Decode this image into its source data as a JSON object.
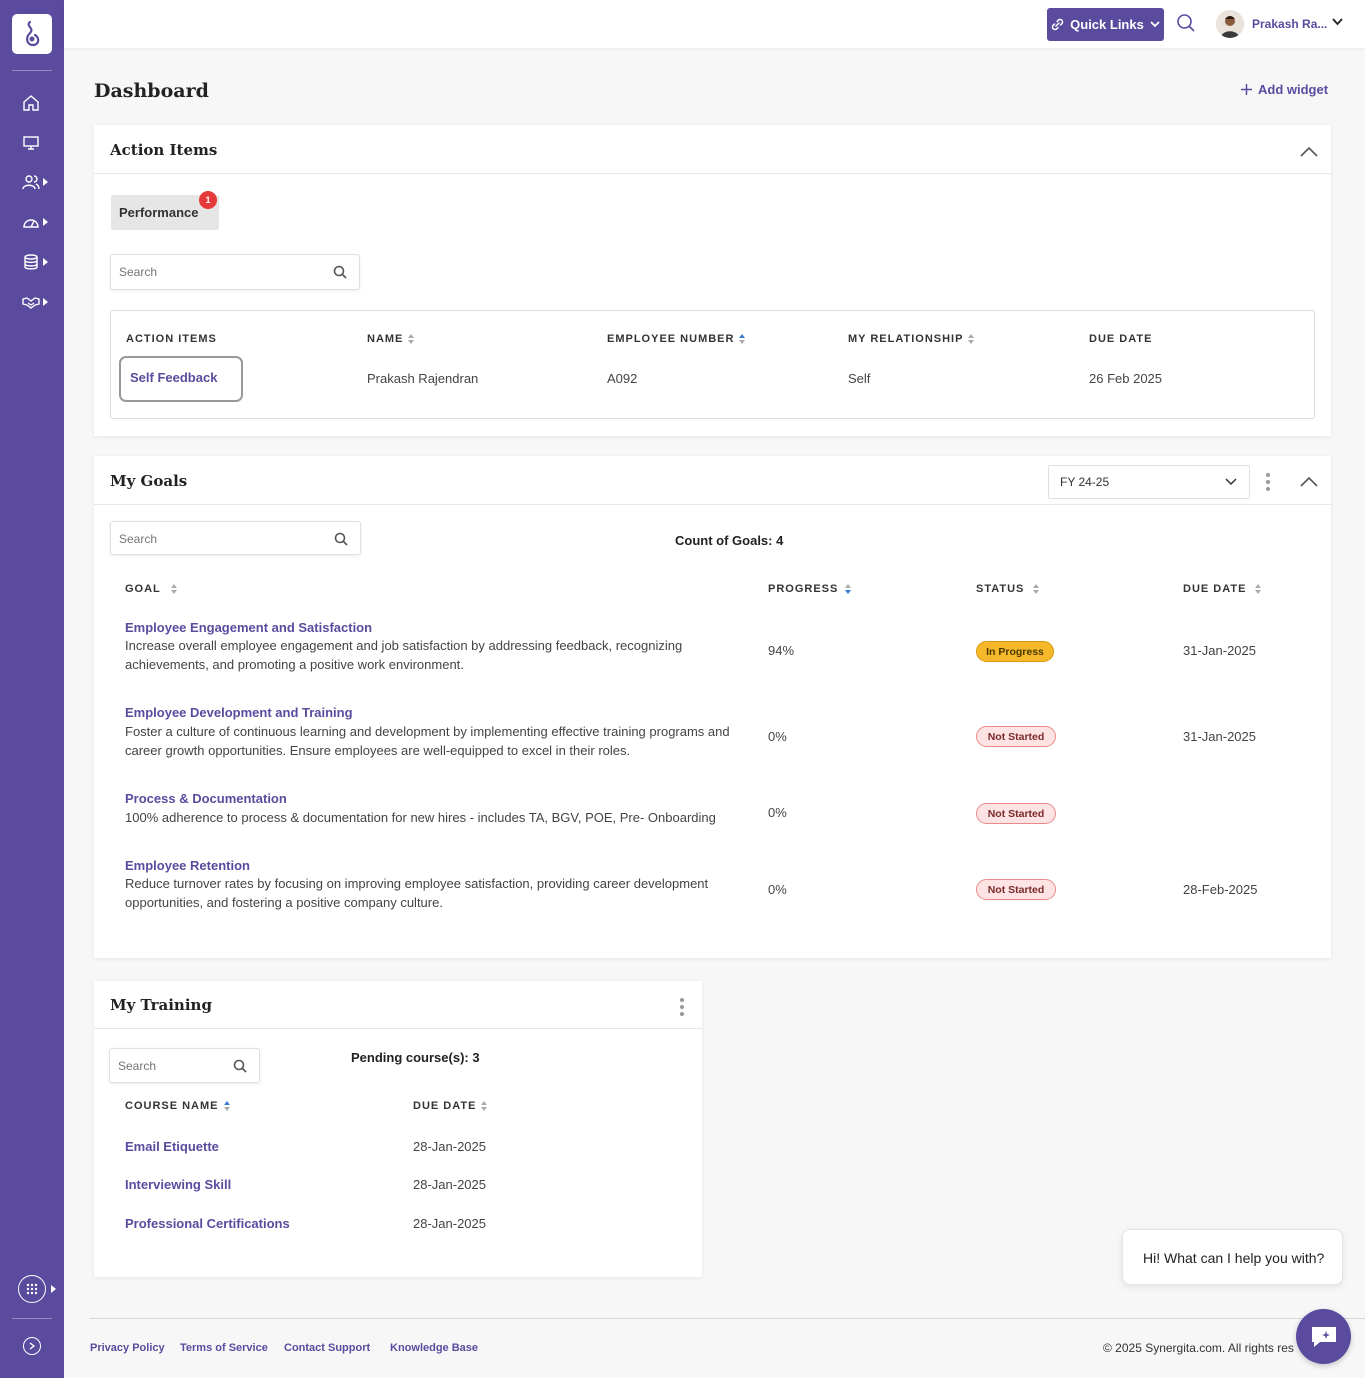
{
  "header": {
    "quick_links_label": "Quick Links",
    "user_name": "Prakash Ra..."
  },
  "page": {
    "title": "Dashboard",
    "add_widget_label": "Add widget"
  },
  "action_items": {
    "title": "Action Items",
    "tab_label": "Performance",
    "tab_badge": "1",
    "search_placeholder": "Search",
    "columns": [
      "ACTION ITEMS",
      "NAME",
      "EMPLOYEE NUMBER",
      "MY RELATIONSHIP",
      "DUE DATE"
    ],
    "rows": [
      {
        "action": "Self Feedback",
        "name": "Prakash Rajendran",
        "employee_number": "A092",
        "relationship": "Self",
        "due_date": "26 Feb 2025"
      }
    ]
  },
  "my_goals": {
    "title": "My Goals",
    "fy_selected": "FY 24-25",
    "search_placeholder": "Search",
    "count_label": "Count of Goals: 4",
    "columns": [
      "GOAL",
      "PROGRESS",
      "STATUS",
      "DUE DATE"
    ],
    "rows": [
      {
        "title": "Employee Engagement and Satisfaction",
        "desc": "Increase overall employee engagement and job satisfaction by addressing feedback, recognizing achievements, and promoting a positive work environment.",
        "progress": "94%",
        "status": "In Progress",
        "due_date": "31-Jan-2025"
      },
      {
        "title": "Employee Development and Training",
        "desc": "Foster a culture of continuous learning and development by implementing effective training programs and career growth opportunities. Ensure employees are well-equipped to excel in their roles.",
        "progress": "0%",
        "status": "Not Started",
        "due_date": "31-Jan-2025"
      },
      {
        "title": "Process & Documentation",
        "desc": "100% adherence to process & documentation for new hires - includes TA, BGV, POE, Pre- Onboarding",
        "progress": "0%",
        "status": "Not Started",
        "due_date": ""
      },
      {
        "title": "Employee Retention",
        "desc": "Reduce turnover rates by focusing on improving employee satisfaction, providing career development opportunities, and fostering a positive company culture.",
        "progress": "0%",
        "status": "Not Started",
        "due_date": "28-Feb-2025"
      }
    ]
  },
  "my_training": {
    "title": "My Training",
    "search_placeholder": "Search",
    "pending_label": "Pending course(s): 3",
    "columns": [
      "COURSE NAME",
      "DUE DATE"
    ],
    "rows": [
      {
        "course": "Email Etiquette",
        "due_date": "28-Jan-2025"
      },
      {
        "course": "Interviewing Skill",
        "due_date": "28-Jan-2025"
      },
      {
        "course": "Professional Certifications",
        "due_date": "28-Jan-2025"
      }
    ]
  },
  "footer": {
    "links": [
      "Privacy Policy",
      "Terms of Service",
      "Contact Support",
      "Knowledge Base"
    ],
    "copyright": "© 2025 Synergita.com. All rights res"
  },
  "chat": {
    "greeting": "Hi! What can I help you with?"
  },
  "colors": {
    "brand": "#5b4b9e",
    "in_progress": "#f5b82a",
    "not_started": "#fde3e3",
    "badge": "#e63a3a"
  }
}
